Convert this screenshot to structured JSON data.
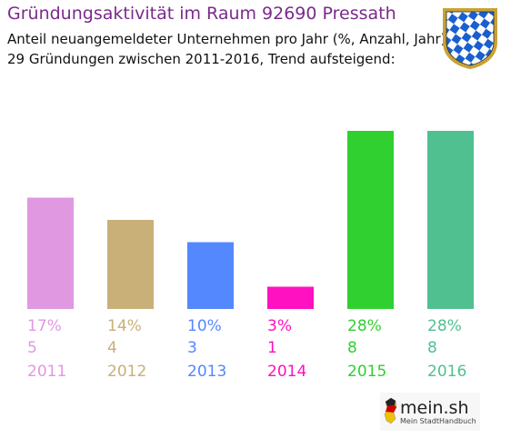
{
  "header": {
    "title": "Gründungsaktivität im Raum 92690 Pressath",
    "subtitle_line1": "Anteil neuangemeldeter Unternehmen pro Jahr (%, Anzahl, Jahr)",
    "subtitle_line2": "29 Gründungen zwischen 2011-2016, Trend aufsteigend:"
  },
  "logo": {
    "brand": "mein.sh",
    "tagline": "Mein StadtHandbuch"
  },
  "chart_data": {
    "type": "bar",
    "categories": [
      "2011",
      "2012",
      "2013",
      "2014",
      "2015",
      "2016"
    ],
    "values": [
      5,
      4,
      3,
      1,
      8,
      8
    ],
    "percent_labels": [
      "17%",
      "14%",
      "10%",
      "3%",
      "28%",
      "28%"
    ],
    "count_labels": [
      "5",
      "4",
      "3",
      "1",
      "8",
      "8"
    ],
    "colors": [
      "#e098e0",
      "#c8b078",
      "#5488ff",
      "#ff10c0",
      "#30d030",
      "#50c090"
    ],
    "ylim": [
      0,
      8
    ],
    "grid": false,
    "legend": "none"
  }
}
